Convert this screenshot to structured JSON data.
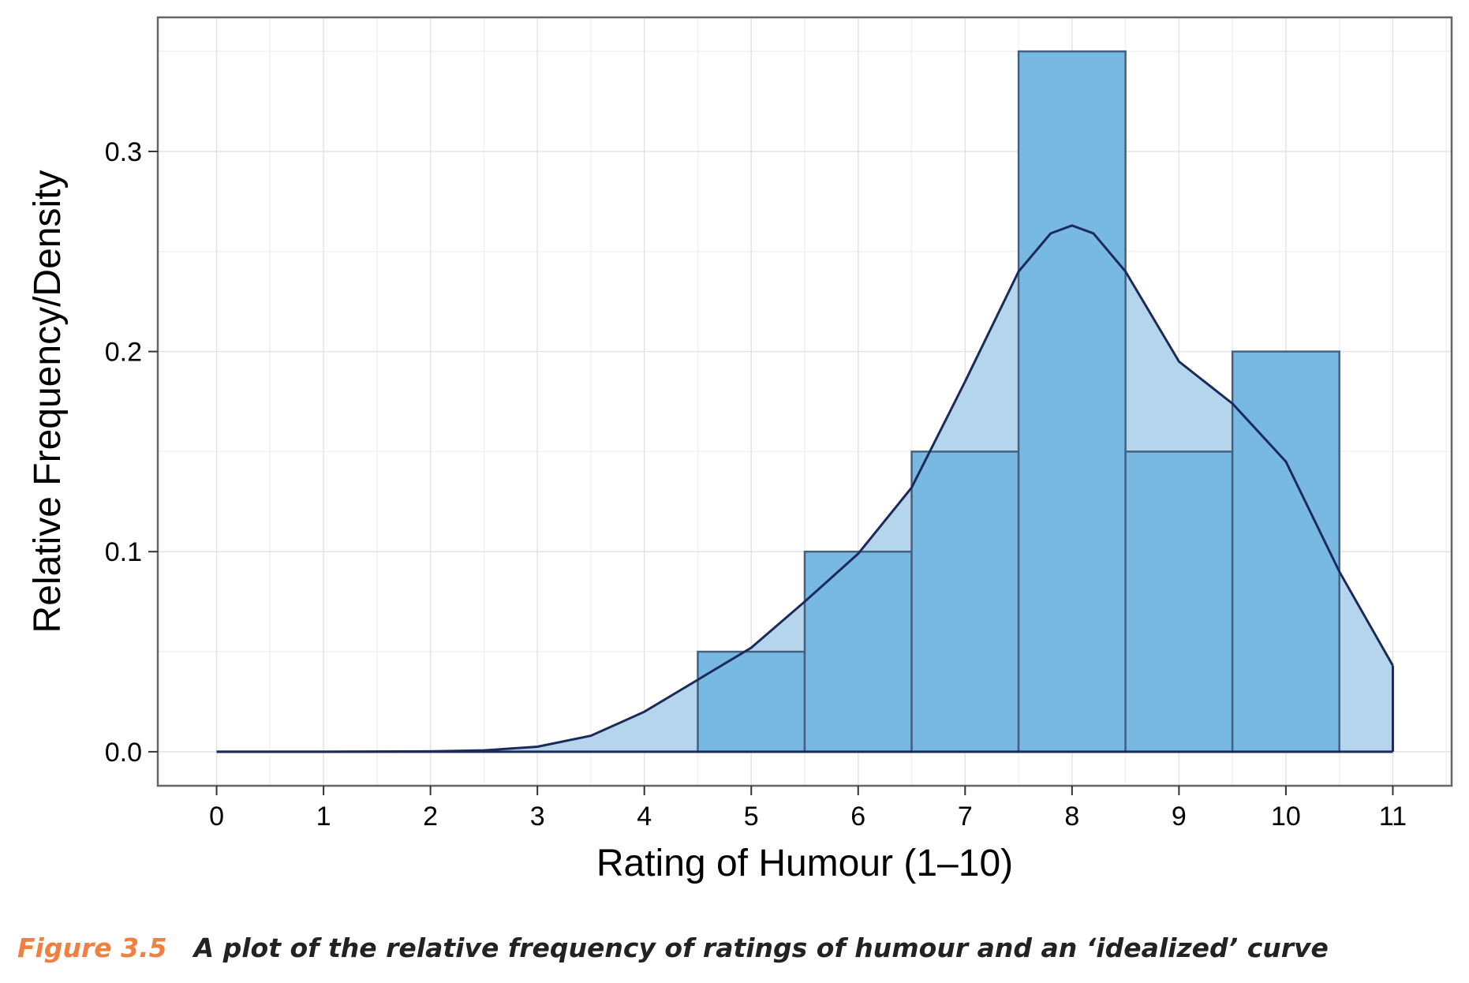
{
  "chart_data": {
    "type": "bar",
    "xlabel": "Rating of Humour (1–10)",
    "ylabel": "Relative Frequency/Density",
    "xlim": [
      -0.55,
      11.55
    ],
    "ylim": [
      -0.017,
      0.367
    ],
    "x_ticks": [
      "0",
      "1",
      "2",
      "3",
      "4",
      "5",
      "6",
      "7",
      "8",
      "9",
      "10",
      "11"
    ],
    "y_ticks": [
      "0.0",
      "0.1",
      "0.2",
      "0.3"
    ],
    "bin_width": 1,
    "categories": [
      5,
      6,
      7,
      8,
      9,
      10
    ],
    "values": [
      0.05,
      0.1,
      0.15,
      0.35,
      0.15,
      0.2
    ],
    "density_curve": {
      "x": [
        0,
        1,
        2,
        2.5,
        3,
        3.5,
        4,
        4.5,
        5,
        5.5,
        6,
        6.5,
        7,
        7.5,
        7.8,
        8,
        8.2,
        8.5,
        9,
        9.5,
        10,
        10.5,
        11
      ],
      "y": [
        0,
        0,
        0.0002,
        0.0007,
        0.0025,
        0.008,
        0.02,
        0.036,
        0.052,
        0.075,
        0.099,
        0.132,
        0.185,
        0.24,
        0.259,
        0.263,
        0.259,
        0.24,
        0.195,
        0.174,
        0.145,
        0.09,
        0.043
      ]
    },
    "colors": {
      "bar_fill": "#78b9e3",
      "bar_stroke": "#46607f",
      "curve_fill": "#b5d5ed",
      "curve_stroke": "#1c2a5a",
      "panel_border": "#666666",
      "grid_major": "#e3e3e3",
      "grid_minor": "#f1f1f1"
    },
    "grid": true
  },
  "caption": {
    "label": "Figure 3.5",
    "text": "A plot of the relative frequency of ratings of humour and an ‘idealized’ curve"
  }
}
